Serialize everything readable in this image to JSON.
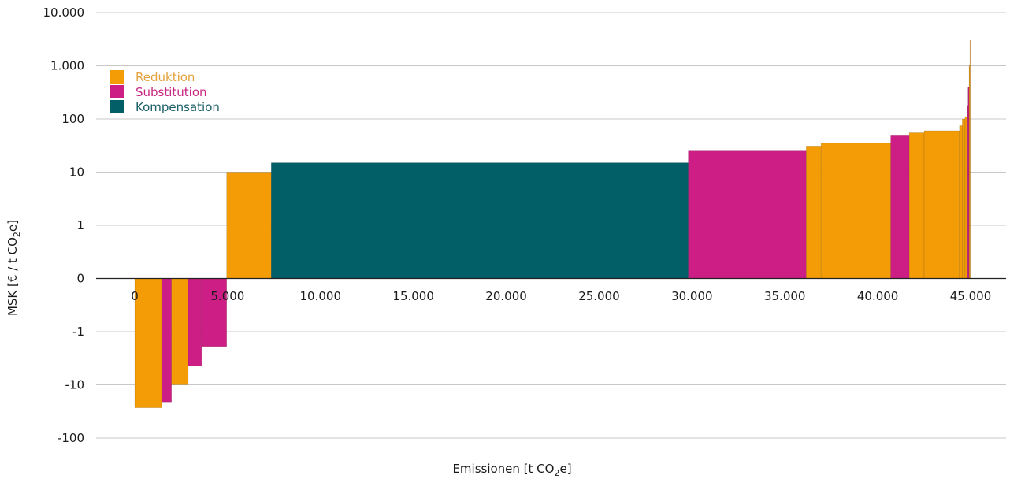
{
  "chart_data": {
    "type": "bar",
    "subtype": "marginal-abatement-cost-curve",
    "title": "",
    "xlabel": "Emissionen [t CO",
    "xlabel_sub": "2",
    "xlabel_end": "e]",
    "ylabel": "MSK [€ / t CO",
    "ylabel_sub": "2",
    "ylabel_end": "e]",
    "y_scale": "symmetric-log",
    "y_tick_labels": [
      "10.000",
      "1.000",
      "100",
      "10",
      "1",
      "0",
      "-1",
      "-10",
      "-100"
    ],
    "y_tick_values": [
      10000,
      1000,
      100,
      10,
      1,
      0,
      -1,
      -10,
      -100
    ],
    "x_tick_labels": [
      "0",
      "5.000",
      "10.000",
      "15.000",
      "20.000",
      "25.000",
      "30.000",
      "35.000",
      "40.000",
      "45.000"
    ],
    "x_tick_values": [
      0,
      5000,
      10000,
      15000,
      20000,
      25000,
      30000,
      35000,
      40000,
      45000
    ],
    "xlim": [
      -2000,
      47000
    ],
    "grid": true,
    "legend_position": "top-left",
    "categories": [
      {
        "name": "Reduktion",
        "color": "#f39c06",
        "label_color": "#e3a23b"
      },
      {
        "name": "Substitution",
        "color": "#cc1e84",
        "label_color": "#c8267f"
      },
      {
        "name": "Kompensation",
        "color": "#025f67",
        "label_color": "#1b5e66"
      }
    ],
    "bars": [
      {
        "category": "Reduktion",
        "x_start": 0,
        "x_end": 1450,
        "value": -27
      },
      {
        "category": "Substitution",
        "x_start": 1450,
        "x_end": 1980,
        "value": -21
      },
      {
        "category": "Reduktion",
        "x_start": 1980,
        "x_end": 2880,
        "value": -10
      },
      {
        "category": "Substitution",
        "x_start": 2880,
        "x_end": 3600,
        "value": -4.4
      },
      {
        "category": "Substitution",
        "x_start": 3600,
        "x_end": 4950,
        "value": -1.9
      },
      {
        "category": "Reduktion",
        "x_start": 4950,
        "x_end": 7350,
        "value": 10
      },
      {
        "category": "Kompensation",
        "x_start": 7350,
        "x_end": 29800,
        "value": 15
      },
      {
        "category": "Substitution",
        "x_start": 29800,
        "x_end": 36150,
        "value": 25
      },
      {
        "category": "Reduktion",
        "x_start": 36150,
        "x_end": 36950,
        "value": 31
      },
      {
        "category": "Reduktion",
        "x_start": 36950,
        "x_end": 40700,
        "value": 35
      },
      {
        "category": "Substitution",
        "x_start": 40700,
        "x_end": 41700,
        "value": 50
      },
      {
        "category": "Reduktion",
        "x_start": 41700,
        "x_end": 42500,
        "value": 55
      },
      {
        "category": "Reduktion",
        "x_start": 42500,
        "x_end": 44400,
        "value": 60
      },
      {
        "category": "Reduktion",
        "x_start": 44400,
        "x_end": 44550,
        "value": 75
      },
      {
        "category": "Reduktion",
        "x_start": 44550,
        "x_end": 44700,
        "value": 100
      },
      {
        "category": "Reduktion",
        "x_start": 44700,
        "x_end": 44800,
        "value": 110
      },
      {
        "category": "Substitution",
        "x_start": 44800,
        "x_end": 44860,
        "value": 180
      },
      {
        "category": "Substitution",
        "x_start": 44860,
        "x_end": 44920,
        "value": 400
      },
      {
        "category": "Reduktion",
        "x_start": 44920,
        "x_end": 44960,
        "value": 1000
      },
      {
        "category": "Reduktion",
        "x_start": 44960,
        "x_end": 44985,
        "value": 3000
      }
    ]
  }
}
